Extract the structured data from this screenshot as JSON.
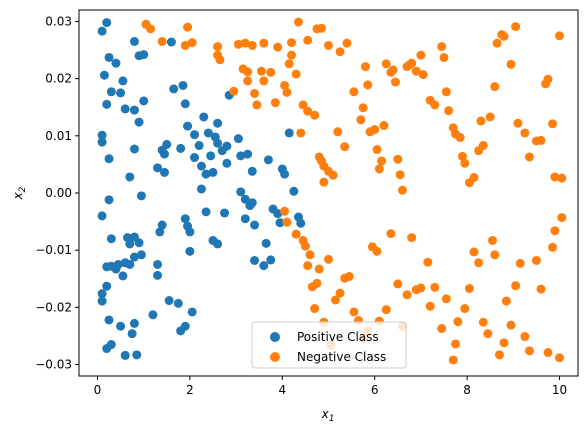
{
  "chart_data": {
    "type": "scatter",
    "title": "",
    "xlabel": "x",
    "xlabel_sub": "1",
    "ylabel": "x",
    "ylabel_sub": "2",
    "xlim": [
      -0.4,
      10.4
    ],
    "ylim": [
      -0.032,
      0.032
    ],
    "xticks": [
      0,
      2,
      4,
      6,
      8,
      10
    ],
    "yticks": [
      -0.03,
      -0.02,
      -0.01,
      0.0,
      0.01,
      0.02,
      0.03
    ],
    "ytick_labels": [
      "−0.03",
      "−0.02",
      "−0.01",
      "0.00",
      "0.01",
      "0.02",
      "0.03"
    ],
    "grid": false,
    "legend_position": "bottom-center",
    "series": [
      {
        "name": "Positive Class",
        "color": "#1f77b4",
        "points": [
          [
            0.1,
            0.0283
          ],
          [
            0.2,
            0.0298
          ],
          [
            0.25,
            0.0237
          ],
          [
            0.4,
            0.0227
          ],
          [
            0.15,
            0.0206
          ],
          [
            0.55,
            0.0196
          ],
          [
            0.3,
            0.0177
          ],
          [
            0.2,
            0.0155
          ],
          [
            0.5,
            0.0175
          ],
          [
            0.6,
            0.0147
          ],
          [
            0.8,
            0.0265
          ],
          [
            0.9,
            0.024
          ],
          [
            1.0,
            0.0242
          ],
          [
            0.8,
            0.0145
          ],
          [
            1.0,
            0.0161
          ],
          [
            0.9,
            0.0124
          ],
          [
            0.8,
            0.0077
          ],
          [
            0.1,
            0.0101
          ],
          [
            0.1,
            0.0089
          ],
          [
            0.25,
            0.006
          ],
          [
            0.7,
            0.0028
          ],
          [
            0.1,
            -0.004
          ],
          [
            0.25,
            -0.0012
          ],
          [
            0.3,
            -0.008
          ],
          [
            0.55,
            -0.0145
          ],
          [
            0.4,
            -0.0133
          ],
          [
            0.45,
            -0.0125
          ],
          [
            0.3,
            -0.0128
          ],
          [
            0.2,
            -0.0129
          ],
          [
            0.6,
            -0.0122
          ],
          [
            0.7,
            -0.0089
          ],
          [
            0.65,
            -0.0078
          ],
          [
            0.8,
            -0.0077
          ],
          [
            0.95,
            -0.0005
          ],
          [
            0.9,
            -0.0087
          ],
          [
            0.7,
            -0.0125
          ],
          [
            0.8,
            -0.0112
          ],
          [
            0.95,
            -0.0108
          ],
          [
            0.1,
            -0.0176
          ],
          [
            0.1,
            -0.0189
          ],
          [
            0.2,
            -0.0163
          ],
          [
            0.25,
            -0.0222
          ],
          [
            0.3,
            -0.0265
          ],
          [
            0.2,
            -0.0272
          ],
          [
            0.5,
            -0.0233
          ],
          [
            0.6,
            -0.0284
          ],
          [
            0.75,
            -0.0246
          ],
          [
            0.8,
            -0.0228
          ],
          [
            0.85,
            -0.0283
          ],
          [
            1.2,
            -0.0213
          ],
          [
            1.3,
            -0.0144
          ],
          [
            1.3,
            -0.0125
          ],
          [
            1.35,
            -0.0068
          ],
          [
            1.4,
            -0.0056
          ],
          [
            1.5,
            0.0085
          ],
          [
            1.4,
            0.0075
          ],
          [
            1.45,
            0.0036
          ],
          [
            1.3,
            0.0044
          ],
          [
            1.45,
            0.0068
          ],
          [
            1.55,
            -0.0188
          ],
          [
            1.6,
            0.0264
          ],
          [
            1.65,
            0.0182
          ],
          [
            1.75,
            -0.0193
          ],
          [
            1.8,
            0.0078
          ],
          [
            1.8,
            -0.0241
          ],
          [
            1.85,
            0.0188
          ],
          [
            1.9,
            0.0156
          ],
          [
            1.9,
            -0.0233
          ],
          [
            1.95,
            0.0117
          ],
          [
            1.9,
            -0.0045
          ],
          [
            1.95,
            -0.0058
          ],
          [
            2.0,
            -0.0068
          ],
          [
            2.05,
            -0.0208
          ],
          [
            2.0,
            -0.0102
          ],
          [
            2.1,
            0.0102
          ],
          [
            2.1,
            0.0062
          ],
          [
            2.2,
            0.0083
          ],
          [
            2.25,
            0.0047
          ],
          [
            2.25,
            0.0007
          ],
          [
            2.3,
            0.0133
          ],
          [
            2.35,
            -0.0033
          ],
          [
            2.35,
            0.0033
          ],
          [
            2.4,
            0.0105
          ],
          [
            2.45,
            0.0065
          ],
          [
            2.5,
            0.0036
          ],
          [
            2.5,
            -0.0083
          ],
          [
            2.55,
            0.0098
          ],
          [
            2.6,
            0.0122
          ],
          [
            2.6,
            0.0087
          ],
          [
            2.6,
            -0.0089
          ],
          [
            2.7,
            0.0074
          ],
          [
            2.75,
            -0.0035
          ],
          [
            2.8,
            0.0052
          ],
          [
            2.8,
            0.0082
          ],
          [
            2.85,
            0.0171
          ],
          [
            3.05,
            0.0095
          ],
          [
            3.1,
            0.0002
          ],
          [
            3.1,
            0.0065
          ],
          [
            3.2,
            -0.0045
          ],
          [
            3.2,
            -0.0011
          ],
          [
            3.25,
            0.0068
          ],
          [
            3.3,
            -0.0022
          ],
          [
            3.35,
            0.0038
          ],
          [
            3.35,
            -0.0017
          ],
          [
            3.4,
            -0.0056
          ],
          [
            3.4,
            -0.0118
          ],
          [
            3.6,
            -0.0127
          ],
          [
            3.65,
            -0.0088
          ],
          [
            3.7,
            0.0058
          ],
          [
            3.75,
            -0.0117
          ],
          [
            3.8,
            -0.0028
          ],
          [
            3.9,
            -0.0036
          ],
          [
            3.95,
            -0.0052
          ],
          [
            4.0,
            0.0042
          ],
          [
            4.05,
            0.0033
          ],
          [
            4.15,
            0.0105
          ],
          [
            4.25,
            0.0003
          ],
          [
            4.35,
            -0.0042
          ],
          [
            4.4,
            -0.0053
          ]
        ]
      },
      {
        "name": "Negative Class",
        "color": "#ff7f0e",
        "points": [
          [
            1.05,
            0.0295
          ],
          [
            1.15,
            0.0287
          ],
          [
            1.4,
            0.0265
          ],
          [
            1.9,
            0.0258
          ],
          [
            2.05,
            0.0263
          ],
          [
            1.95,
            0.029
          ],
          [
            2.6,
            0.0256
          ],
          [
            2.6,
            0.0241
          ],
          [
            3.05,
            0.026
          ],
          [
            3.2,
            0.0262
          ],
          [
            3.25,
            0.0212
          ],
          [
            3.35,
            0.0258
          ],
          [
            3.6,
            0.0262
          ],
          [
            3.9,
            0.0255
          ],
          [
            4.2,
            0.0263
          ],
          [
            4.35,
            0.0299
          ],
          [
            4.55,
            0.0267
          ],
          [
            4.75,
            0.0287
          ],
          [
            4.85,
            0.0288
          ],
          [
            5.0,
            0.0258
          ],
          [
            5.25,
            0.0247
          ],
          [
            5.4,
            0.0262
          ],
          [
            2.65,
            0.0233
          ],
          [
            2.95,
            0.0178
          ],
          [
            3.15,
            0.0217
          ],
          [
            3.25,
            0.0196
          ],
          [
            3.4,
            0.0174
          ],
          [
            3.45,
            0.0154
          ],
          [
            3.55,
            0.0213
          ],
          [
            3.6,
            0.0196
          ],
          [
            3.75,
            0.0211
          ],
          [
            3.85,
            0.0158
          ],
          [
            4.05,
            0.0188
          ],
          [
            4.1,
            0.0176
          ],
          [
            4.15,
            0.0226
          ],
          [
            4.2,
            0.0241
          ],
          [
            4.3,
            0.0208
          ],
          [
            4.4,
            0.0105
          ],
          [
            4.45,
            0.0154
          ],
          [
            4.55,
            0.0143
          ],
          [
            4.7,
            0.0136
          ],
          [
            4.8,
            0.0063
          ],
          [
            4.85,
            0.0056
          ],
          [
            4.9,
            0.0047
          ],
          [
            5.0,
            0.0038
          ],
          [
            5.1,
            0.0031
          ],
          [
            4.9,
            0.0019
          ],
          [
            5.2,
            0.0107
          ],
          [
            5.35,
            0.0081
          ],
          [
            5.55,
            0.0177
          ],
          [
            5.7,
            0.0128
          ],
          [
            5.75,
            0.0149
          ],
          [
            5.8,
            0.0221
          ],
          [
            5.85,
            0.0189
          ],
          [
            5.9,
            0.0107
          ],
          [
            6.0,
            0.0111
          ],
          [
            6.05,
            0.0076
          ],
          [
            6.1,
            0.0042
          ],
          [
            6.15,
            0.0056
          ],
          [
            6.2,
            0.0118
          ],
          [
            6.25,
            0.0226
          ],
          [
            6.35,
            0.0211
          ],
          [
            6.4,
            0.0215
          ],
          [
            6.45,
            0.0194
          ],
          [
            6.5,
            0.0059
          ],
          [
            6.55,
            0.0032
          ],
          [
            6.6,
            0.0005
          ],
          [
            6.7,
            0.0221
          ],
          [
            6.75,
            0.0224
          ],
          [
            6.8,
            0.0227
          ],
          [
            6.9,
            0.0213
          ],
          [
            7.0,
            0.0241
          ],
          [
            7.05,
            0.0207
          ],
          [
            7.2,
            0.0162
          ],
          [
            7.3,
            0.0154
          ],
          [
            7.45,
            0.0256
          ],
          [
            7.5,
            0.0237
          ],
          [
            7.55,
            0.0177
          ],
          [
            7.6,
            0.0144
          ],
          [
            7.7,
            0.0114
          ],
          [
            7.75,
            0.0103
          ],
          [
            7.85,
            0.0097
          ],
          [
            7.9,
            0.0064
          ],
          [
            7.95,
            0.0052
          ],
          [
            8.05,
            0.0018
          ],
          [
            8.15,
            0.0027
          ],
          [
            8.25,
            0.0074
          ],
          [
            8.3,
            0.0126
          ],
          [
            8.35,
            0.0083
          ],
          [
            8.5,
            0.0133
          ],
          [
            8.6,
            0.0186
          ],
          [
            8.65,
            0.0262
          ],
          [
            8.75,
            0.0277
          ],
          [
            8.8,
            0.0274
          ],
          [
            8.95,
            0.0225
          ],
          [
            9.05,
            0.0291
          ],
          [
            9.1,
            0.0122
          ],
          [
            9.25,
            0.0105
          ],
          [
            9.35,
            0.0063
          ],
          [
            9.5,
            0.0091
          ],
          [
            9.6,
            0.0092
          ],
          [
            9.7,
            0.0191
          ],
          [
            9.75,
            0.0199
          ],
          [
            9.85,
            0.0121
          ],
          [
            9.9,
            0.0028
          ],
          [
            10.0,
            0.0275
          ],
          [
            10.05,
            0.0026
          ],
          [
            4.05,
            -0.0032
          ],
          [
            4.1,
            -0.0051
          ],
          [
            4.3,
            -0.0072
          ],
          [
            4.45,
            -0.0083
          ],
          [
            4.5,
            -0.0093
          ],
          [
            4.55,
            -0.0127
          ],
          [
            4.6,
            -0.0108
          ],
          [
            4.65,
            -0.0164
          ],
          [
            4.7,
            -0.0202
          ],
          [
            4.75,
            -0.0158
          ],
          [
            4.8,
            -0.0133
          ],
          [
            4.9,
            -0.0226
          ],
          [
            5.0,
            -0.0116
          ],
          [
            5.05,
            -0.0266
          ],
          [
            5.15,
            -0.0187
          ],
          [
            5.25,
            -0.0175
          ],
          [
            5.35,
            -0.0149
          ],
          [
            5.45,
            -0.0146
          ],
          [
            5.55,
            -0.0208
          ],
          [
            5.65,
            -0.0223
          ],
          [
            5.75,
            -0.0255
          ],
          [
            5.85,
            -0.0241
          ],
          [
            5.95,
            -0.0094
          ],
          [
            6.05,
            -0.0102
          ],
          [
            6.1,
            -0.0224
          ],
          [
            6.25,
            -0.0204
          ],
          [
            6.35,
            -0.0071
          ],
          [
            6.5,
            -0.0159
          ],
          [
            6.6,
            -0.0233
          ],
          [
            6.7,
            -0.0178
          ],
          [
            6.8,
            -0.0078
          ],
          [
            6.9,
            -0.0169
          ],
          [
            7.0,
            -0.0166
          ],
          [
            7.15,
            -0.0121
          ],
          [
            7.2,
            -0.0198
          ],
          [
            7.3,
            -0.0165
          ],
          [
            7.45,
            -0.0237
          ],
          [
            7.55,
            -0.0185
          ],
          [
            7.7,
            -0.0292
          ],
          [
            7.75,
            -0.0264
          ],
          [
            7.8,
            -0.0225
          ],
          [
            7.95,
            -0.0202
          ],
          [
            8.05,
            -0.0167
          ],
          [
            8.15,
            -0.0103
          ],
          [
            8.25,
            -0.0122
          ],
          [
            8.35,
            -0.0226
          ],
          [
            8.45,
            -0.0246
          ],
          [
            8.55,
            -0.0083
          ],
          [
            8.6,
            -0.0108
          ],
          [
            8.7,
            -0.0283
          ],
          [
            8.8,
            -0.0262
          ],
          [
            8.85,
            -0.0189
          ],
          [
            8.95,
            -0.0231
          ],
          [
            9.05,
            -0.0162
          ],
          [
            9.15,
            -0.0123
          ],
          [
            9.25,
            -0.0251
          ],
          [
            9.35,
            -0.0276
          ],
          [
            9.5,
            -0.0118
          ],
          [
            9.6,
            -0.0168
          ],
          [
            9.75,
            -0.0279
          ],
          [
            9.85,
            -0.0095
          ],
          [
            9.9,
            -0.0066
          ],
          [
            10.0,
            -0.0288
          ],
          [
            10.05,
            -0.0043
          ]
        ]
      }
    ]
  }
}
